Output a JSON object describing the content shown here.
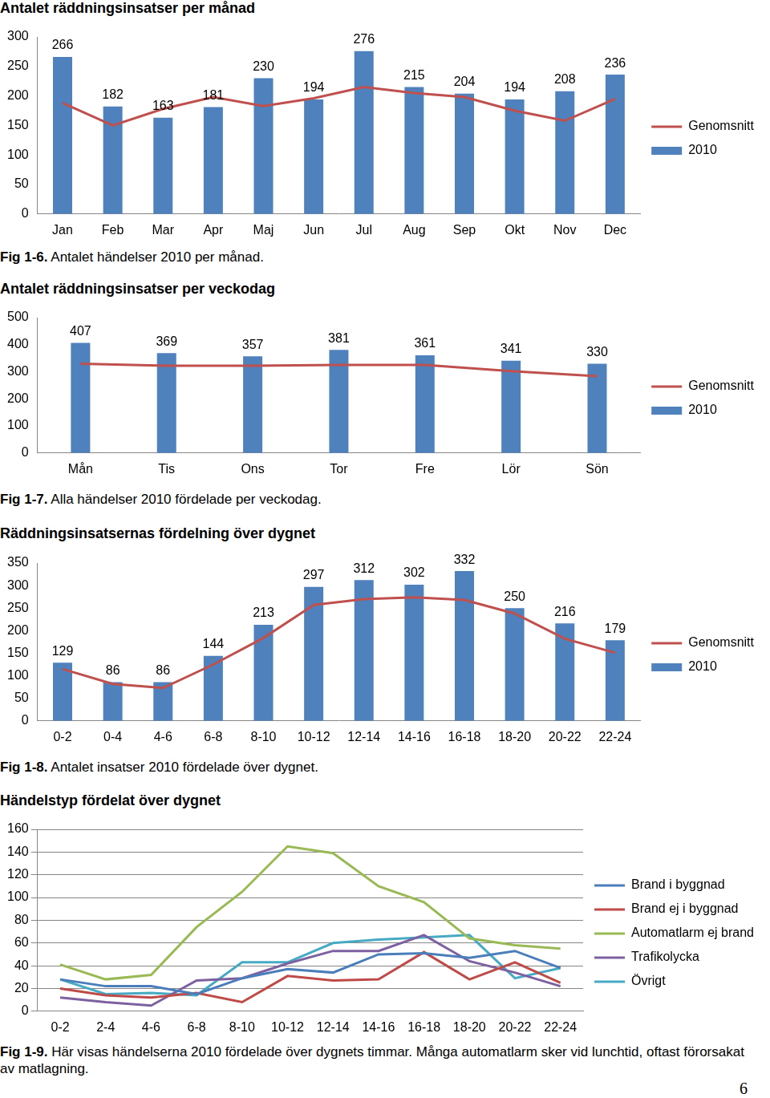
{
  "chart_data": [
    {
      "type": "bar",
      "title": "Antalet räddningsinsatser per månad",
      "caption_label": "Fig 1-6.",
      "caption": "Antalet händelser 2010 per månad.",
      "categories": [
        "Jan",
        "Feb",
        "Mar",
        "Apr",
        "Maj",
        "Jun",
        "Jul",
        "Aug",
        "Sep",
        "Okt",
        "Nov",
        "Dec"
      ],
      "series": [
        {
          "name": "2010",
          "type": "bar",
          "color": "#4f81bd",
          "data_labels": true,
          "values": [
            266,
            182,
            163,
            181,
            230,
            194,
            276,
            215,
            204,
            194,
            208,
            236
          ]
        },
        {
          "name": "Genomsnitt",
          "type": "line",
          "color": "#c0504d",
          "values": [
            188,
            150,
            178,
            198,
            183,
            196,
            215,
            205,
            198,
            175,
            158,
            195
          ]
        }
      ],
      "ylim": [
        0,
        300
      ],
      "yticks": [
        0,
        50,
        100,
        150,
        200,
        250,
        300
      ],
      "grid": false,
      "legend": "right"
    },
    {
      "type": "bar",
      "title": "Antalet räddningsinsatser per veckodag",
      "caption_label": "Fig 1-7.",
      "caption": "Alla händelser 2010 fördelade per veckodag.",
      "categories": [
        "Mån",
        "Tis",
        "Ons",
        "Tor",
        "Fre",
        "Lör",
        "Sön"
      ],
      "series": [
        {
          "name": "2010",
          "type": "bar",
          "color": "#4f81bd",
          "data_labels": true,
          "values": [
            407,
            369,
            357,
            381,
            361,
            341,
            330
          ]
        },
        {
          "name": "Genomsnitt",
          "type": "line",
          "color": "#c0504d",
          "values": [
            330,
            322,
            322,
            325,
            325,
            302,
            284
          ]
        }
      ],
      "ylim": [
        0,
        500
      ],
      "yticks": [
        0,
        100,
        200,
        300,
        400,
        500
      ],
      "grid": false,
      "legend": "right"
    },
    {
      "type": "bar",
      "title": "Räddningsinsatsernas fördelning över dygnet",
      "caption_label": "Fig 1-8.",
      "caption": "Antalet insatser 2010 fördelade över dygnet.",
      "categories": [
        "0-2",
        "0-4",
        "4-6",
        "6-8",
        "8-10",
        "10-12",
        "12-14",
        "14-16",
        "16-18",
        "18-20",
        "20-22",
        "22-24"
      ],
      "series": [
        {
          "name": "2010",
          "type": "bar",
          "color": "#4f81bd",
          "data_labels": true,
          "values": [
            129,
            86,
            86,
            144,
            213,
            297,
            312,
            302,
            332,
            250,
            216,
            179
          ]
        },
        {
          "name": "Genomsnitt",
          "type": "line",
          "color": "#c0504d",
          "values": [
            115,
            82,
            73,
            125,
            184,
            257,
            270,
            274,
            268,
            238,
            182,
            151
          ]
        }
      ],
      "ylim": [
        0,
        350
      ],
      "yticks": [
        0,
        50,
        100,
        150,
        200,
        250,
        300,
        350
      ],
      "grid": false,
      "legend": "right"
    },
    {
      "type": "line",
      "title": "Händelstyp fördelat över dygnet",
      "caption_label": "Fig 1-9.",
      "caption": "Här visas händelserna 2010 fördelade över dygnets timmar. Många automatlarm sker vid lunchtid, oftast förorsakat av matlagning.",
      "categories": [
        "0-2",
        "2-4",
        "4-6",
        "6-8",
        "8-10",
        "10-12",
        "12-14",
        "14-16",
        "16-18",
        "18-20",
        "20-22",
        "22-24"
      ],
      "series": [
        {
          "name": "Brand i byggnad",
          "color": "#4a7ebb",
          "values": [
            28,
            22,
            22,
            15,
            29,
            37,
            34,
            50,
            51,
            47,
            53,
            38
          ]
        },
        {
          "name": "Brand ej i byggnad",
          "color": "#be4b48",
          "values": [
            20,
            14,
            12,
            16,
            8,
            31,
            27,
            28,
            52,
            28,
            43,
            25
          ]
        },
        {
          "name": "Automatlarm ej brand",
          "color": "#98b954",
          "values": [
            41,
            28,
            32,
            74,
            105,
            145,
            139,
            110,
            96,
            64,
            58,
            55
          ]
        },
        {
          "name": "Trafikolycka",
          "color": "#7d60a0",
          "values": [
            12,
            8,
            5,
            27,
            29,
            42,
            53,
            53,
            67,
            44,
            34,
            22
          ]
        },
        {
          "name": "Övrigt",
          "color": "#46aac5",
          "values": [
            28,
            15,
            16,
            14,
            43,
            43,
            60,
            63,
            65,
            67,
            29,
            38
          ]
        }
      ],
      "ylim": [
        0,
        160
      ],
      "yticks": [
        0,
        20,
        40,
        60,
        80,
        100,
        120,
        140,
        160
      ],
      "grid": true,
      "legend": "right"
    }
  ],
  "page_number": "6"
}
